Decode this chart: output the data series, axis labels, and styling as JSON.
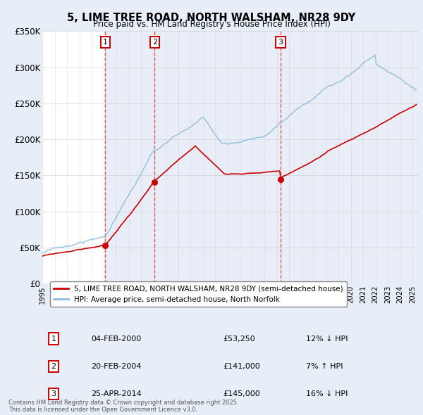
{
  "title": "5, LIME TREE ROAD, NORTH WALSHAM, NR28 9DY",
  "subtitle": "Price paid vs. HM Land Registry's House Price Index (HPI)",
  "ylim": [
    0,
    350000
  ],
  "yticks": [
    0,
    50000,
    100000,
    150000,
    200000,
    250000,
    300000,
    350000
  ],
  "ytick_labels": [
    "£0",
    "£50K",
    "£100K",
    "£150K",
    "£200K",
    "£250K",
    "£300K",
    "£350K"
  ],
  "xlim_start": 1995.0,
  "xlim_end": 2025.5,
  "bg_color": "#e8eef8",
  "plot_bg_color": "#ffffff",
  "grid_color": "#cccccc",
  "red_line_color": "#cc0000",
  "blue_line_color": "#88bbdd",
  "sale_marker_color": "#cc0000",
  "dashed_line_color": "#dd4444",
  "shade_color": "#ccd8ee",
  "legend_label_red": "5, LIME TREE ROAD, NORTH WALSHAM, NR28 9DY (semi-detached house)",
  "legend_label_blue": "HPI: Average price, semi-detached house, North Norfolk",
  "transactions": [
    {
      "num": 1,
      "date": "04-FEB-2000",
      "price": 53250,
      "pct": "12%",
      "dir": "↓",
      "year": 2000.1
    },
    {
      "num": 2,
      "date": "20-FEB-2004",
      "price": 141000,
      "pct": "7%",
      "dir": "↑",
      "year": 2004.1
    },
    {
      "num": 3,
      "date": "25-APR-2014",
      "price": 145000,
      "pct": "16%",
      "dir": "↓",
      "year": 2014.3
    }
  ],
  "footer": "Contains HM Land Registry data © Crown copyright and database right 2025.\nThis data is licensed under the Open Government Licence v3.0."
}
